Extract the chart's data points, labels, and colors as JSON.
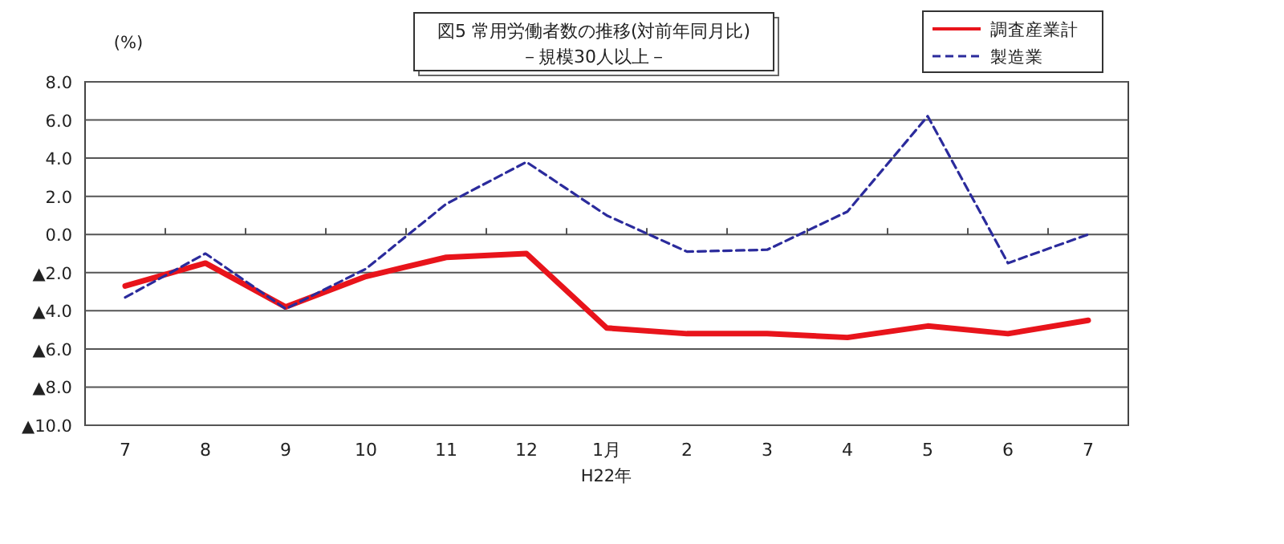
{
  "chart_data": {
    "type": "line",
    "title": "図5  常用労働者数の推移(対前年同月比)",
    "subtitle": "－規模30人以上－",
    "ylabel": "(%)",
    "xlabel": "H22年",
    "categories": [
      "7",
      "8",
      "9",
      "10",
      "11",
      "12",
      "1月",
      "2",
      "3",
      "4",
      "5",
      "6",
      "7"
    ],
    "series": [
      {
        "name": "調査産業計",
        "color": "#e8141b",
        "line_style": "solid",
        "values": [
          -2.7,
          -1.5,
          -3.8,
          -2.2,
          -1.2,
          -1.0,
          -4.9,
          -5.2,
          -5.2,
          -5.4,
          -4.8,
          -5.2,
          -4.5
        ]
      },
      {
        "name": "製造業",
        "color": "#2b2b9c",
        "line_style": "dashed",
        "values": [
          -3.3,
          -1.0,
          -3.9,
          -1.8,
          1.6,
          3.8,
          1.0,
          -0.9,
          -0.8,
          1.2,
          6.2,
          -1.5,
          0.0
        ]
      }
    ],
    "ylim": [
      -10,
      8
    ],
    "yticks": [
      {
        "value": 8,
        "label": "8.0"
      },
      {
        "value": 6,
        "label": "6.0"
      },
      {
        "value": 4,
        "label": "4.0"
      },
      {
        "value": 2,
        "label": "2.0"
      },
      {
        "value": 0,
        "label": "0.0"
      },
      {
        "value": -2,
        "label": "▲2.0"
      },
      {
        "value": -4,
        "label": "▲4.0"
      },
      {
        "value": -6,
        "label": "▲6.0"
      },
      {
        "value": -8,
        "label": "▲8.0"
      },
      {
        "value": -10,
        "label": "▲10.0"
      }
    ],
    "grid": "y",
    "legend": "top right",
    "marker": "none"
  }
}
